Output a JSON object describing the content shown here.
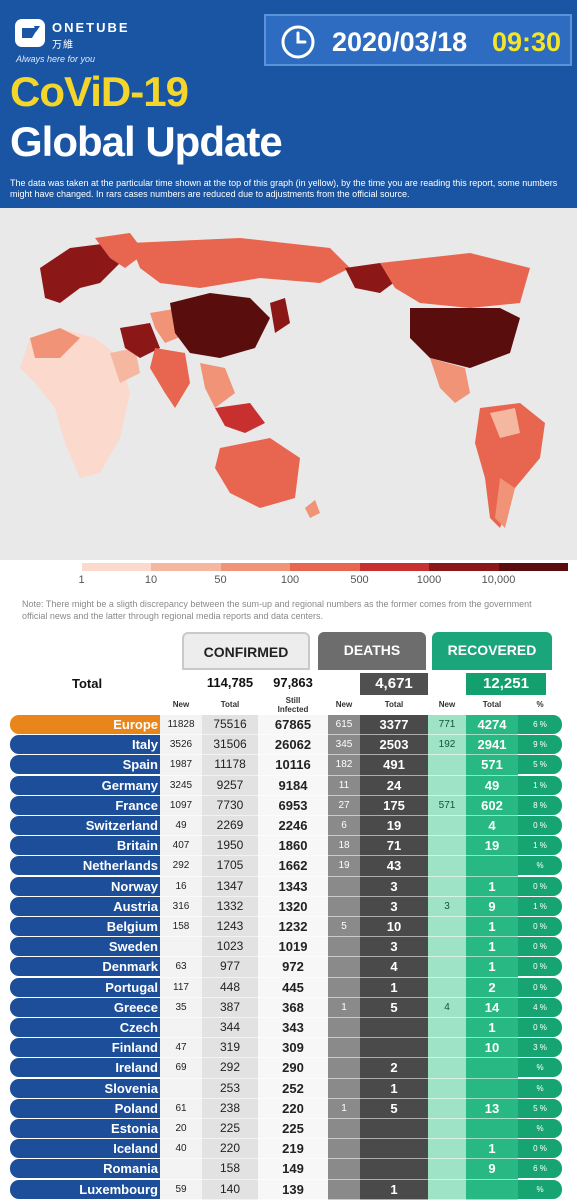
{
  "brand": {
    "name": "ONETUBE",
    "name_cn": "万維",
    "tagline": "Always here for you"
  },
  "header": {
    "date": "2020/03/18",
    "time": "09:30",
    "title_line1": "CoViD-19",
    "title_line2": "Global Update",
    "intro": "The data was taken at the particular time shown at the top of this graph (in yellow), by the time you are reading this report, some numbers might have changed. In rars cases numbers are reduced due to adjustments from the official source."
  },
  "legend": {
    "labels": [
      "1",
      "10",
      "50",
      "100",
      "500",
      "1000",
      "10,000"
    ],
    "colors": [
      "#ffffff",
      "#fbd9cc",
      "#f6b7a0",
      "#f09377",
      "#e8654f",
      "#c83030",
      "#8c1717",
      "#5a0d0d"
    ]
  },
  "note": "Note: There might be a sligth discrepancy between the sum-up and regional numbers as the former comes from the government official news and the latter through regional media reports and data centers.",
  "tabs": {
    "confirmed": "CONFIRMED",
    "deaths": "DEATHS",
    "recovered": "RECOVERED"
  },
  "totals": {
    "label": "Total",
    "confirmed_total": "114,785",
    "still_infected": "97,863",
    "deaths_total": "4,671",
    "recovered_total": "12,251"
  },
  "subheaders": {
    "new": "New",
    "total": "Total",
    "still_infected": "Still Infected",
    "deaths_new": "New",
    "deaths_total": "Total",
    "rec_new": "New",
    "rec_total": "Total",
    "pct": "%"
  },
  "colors": {
    "header_blue": "#1a55a3",
    "title_yellow": "#f3d52c",
    "row_blue": "#1d4e9a",
    "region_orange": "#e8861c",
    "deaths_grey": "#505050",
    "recovered_green": "#14a06e"
  },
  "rows": [
    {
      "name": "Europe",
      "cnew": "11828",
      "ctot": "75516",
      "still": "67865",
      "dnew": "615",
      "dtot": "3377",
      "rnew": "771",
      "rtot": "4274",
      "pct": "6 %",
      "region": true
    },
    {
      "name": "Italy",
      "cnew": "3526",
      "ctot": "31506",
      "still": "26062",
      "dnew": "345",
      "dtot": "2503",
      "rnew": "192",
      "rtot": "2941",
      "pct": "9 %"
    },
    {
      "name": "Spain",
      "cnew": "1987",
      "ctot": "11178",
      "still": "10116",
      "dnew": "182",
      "dtot": "491",
      "rnew": "",
      "rtot": "571",
      "pct": "5 %"
    },
    {
      "name": "Germany",
      "cnew": "3245",
      "ctot": "9257",
      "still": "9184",
      "dnew": "11",
      "dtot": "24",
      "rnew": "",
      "rtot": "49",
      "pct": "1 %"
    },
    {
      "name": "France",
      "cnew": "1097",
      "ctot": "7730",
      "still": "6953",
      "dnew": "27",
      "dtot": "175",
      "rnew": "571",
      "rtot": "602",
      "pct": "8 %"
    },
    {
      "name": "Switzerland",
      "cnew": "49",
      "ctot": "2269",
      "still": "2246",
      "dnew": "6",
      "dtot": "19",
      "rnew": "",
      "rtot": "4",
      "pct": "0 %"
    },
    {
      "name": "Britain",
      "cnew": "407",
      "ctot": "1950",
      "still": "1860",
      "dnew": "18",
      "dtot": "71",
      "rnew": "",
      "rtot": "19",
      "pct": "1 %"
    },
    {
      "name": "Netherlands",
      "cnew": "292",
      "ctot": "1705",
      "still": "1662",
      "dnew": "19",
      "dtot": "43",
      "rnew": "",
      "rtot": "",
      "pct": "%"
    },
    {
      "name": "Norway",
      "cnew": "16",
      "ctot": "1347",
      "still": "1343",
      "dnew": "",
      "dtot": "3",
      "rnew": "",
      "rtot": "1",
      "pct": "0 %"
    },
    {
      "name": "Austria",
      "cnew": "316",
      "ctot": "1332",
      "still": "1320",
      "dnew": "",
      "dtot": "3",
      "rnew": "3",
      "rtot": "9",
      "pct": "1 %"
    },
    {
      "name": "Belgium",
      "cnew": "158",
      "ctot": "1243",
      "still": "1232",
      "dnew": "5",
      "dtot": "10",
      "rnew": "",
      "rtot": "1",
      "pct": "0 %"
    },
    {
      "name": "Sweden",
      "cnew": "",
      "ctot": "1023",
      "still": "1019",
      "dnew": "",
      "dtot": "3",
      "rnew": "",
      "rtot": "1",
      "pct": "0 %"
    },
    {
      "name": "Denmark",
      "cnew": "63",
      "ctot": "977",
      "still": "972",
      "dnew": "",
      "dtot": "4",
      "rnew": "",
      "rtot": "1",
      "pct": "0 %"
    },
    {
      "name": "Portugal",
      "cnew": "117",
      "ctot": "448",
      "still": "445",
      "dnew": "",
      "dtot": "1",
      "rnew": "",
      "rtot": "2",
      "pct": "0 %"
    },
    {
      "name": "Greece",
      "cnew": "35",
      "ctot": "387",
      "still": "368",
      "dnew": "1",
      "dtot": "5",
      "rnew": "4",
      "rtot": "14",
      "pct": "4 %"
    },
    {
      "name": "Czech",
      "cnew": "",
      "ctot": "344",
      "still": "343",
      "dnew": "",
      "dtot": "",
      "rnew": "",
      "rtot": "1",
      "pct": "0 %"
    },
    {
      "name": "Finland",
      "cnew": "47",
      "ctot": "319",
      "still": "309",
      "dnew": "",
      "dtot": "",
      "rnew": "",
      "rtot": "10",
      "pct": "3 %"
    },
    {
      "name": "Ireland",
      "cnew": "69",
      "ctot": "292",
      "still": "290",
      "dnew": "",
      "dtot": "2",
      "rnew": "",
      "rtot": "",
      "pct": "%"
    },
    {
      "name": "Slovenia",
      "cnew": "",
      "ctot": "253",
      "still": "252",
      "dnew": "",
      "dtot": "1",
      "rnew": "",
      "rtot": "",
      "pct": "%"
    },
    {
      "name": "Poland",
      "cnew": "61",
      "ctot": "238",
      "still": "220",
      "dnew": "1",
      "dtot": "5",
      "rnew": "",
      "rtot": "13",
      "pct": "5 %"
    },
    {
      "name": "Estonia",
      "cnew": "20",
      "ctot": "225",
      "still": "225",
      "dnew": "",
      "dtot": "",
      "rnew": "",
      "rtot": "",
      "pct": "%"
    },
    {
      "name": "Iceland",
      "cnew": "40",
      "ctot": "220",
      "still": "219",
      "dnew": "",
      "dtot": "",
      "rnew": "",
      "rtot": "1",
      "pct": "0 %"
    },
    {
      "name": "Romania",
      "cnew": "",
      "ctot": "158",
      "still": "149",
      "dnew": "",
      "dtot": "",
      "rnew": "",
      "rtot": "9",
      "pct": "6 %"
    },
    {
      "name": "Luxembourg",
      "cnew": "59",
      "ctot": "140",
      "still": "139",
      "dnew": "",
      "dtot": "1",
      "rnew": "",
      "rtot": "",
      "pct": "%"
    }
  ]
}
